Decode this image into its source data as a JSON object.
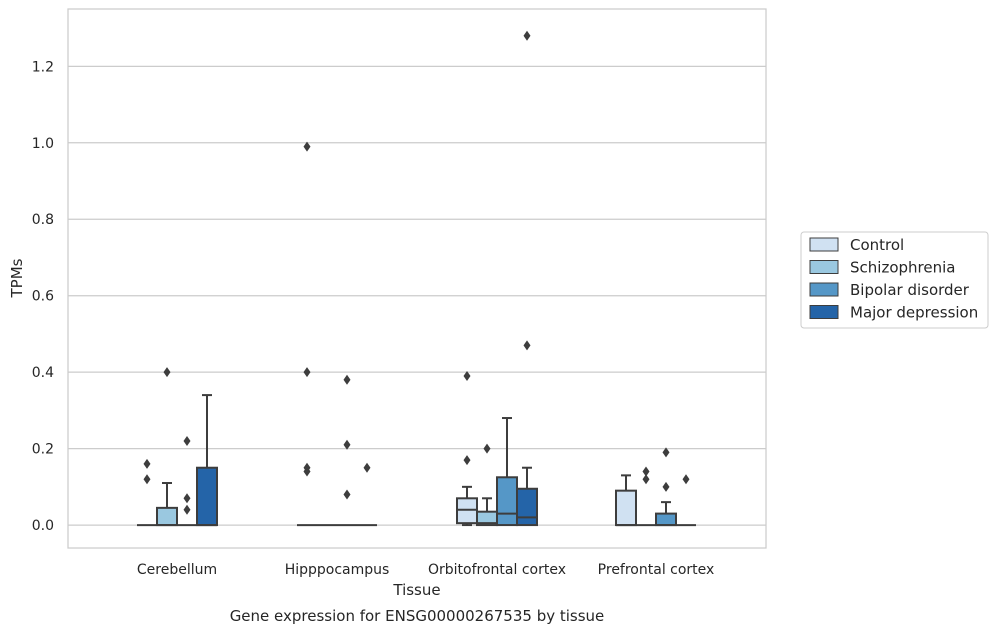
{
  "chart_data": {
    "type": "box",
    "title": "",
    "caption": "Gene expression for ENSG00000267535 by tissue",
    "xlabel": "Tissue",
    "ylabel": "TPMs",
    "ylim": [
      -0.06,
      1.35
    ],
    "yticks": [
      0.0,
      0.2,
      0.4,
      0.6,
      0.8,
      1.0,
      1.2
    ],
    "ytick_labels": [
      "0.0",
      "0.2",
      "0.4",
      "0.6",
      "0.8",
      "1.0",
      "1.2"
    ],
    "grid": "horizontal",
    "legend_position": "right",
    "categories": [
      "Cerebellum",
      "Hipppocampus",
      "Orbitofrontal cortex",
      "Prefrontal cortex"
    ],
    "series": [
      {
        "name": "Control",
        "color": "#d0e1f2",
        "boxes": [
          {
            "q1": 0,
            "median": 0,
            "q3": 0,
            "whislo": 0,
            "whishi": 0,
            "fliers": [
              0.12,
              0.16
            ]
          },
          {
            "q1": 0,
            "median": 0,
            "q3": 0,
            "whislo": 0,
            "whishi": 0,
            "fliers": [
              0.4,
              0.99,
              0.14,
              0.15
            ]
          },
          {
            "q1": 0.005,
            "median": 0.04,
            "q3": 0.07,
            "whislo": 0,
            "whishi": 0.1,
            "fliers": [
              0.17,
              0.39
            ]
          },
          {
            "q1": 0,
            "median": 0,
            "q3": 0.09,
            "whislo": 0,
            "whishi": 0.13,
            "fliers": []
          }
        ]
      },
      {
        "name": "Schizophrenia",
        "color": "#9ac8e0",
        "boxes": [
          {
            "q1": 0,
            "median": 0,
            "q3": 0.045,
            "whislo": 0,
            "whishi": 0.11,
            "fliers": [
              0.4
            ]
          },
          {
            "q1": 0,
            "median": 0,
            "q3": 0,
            "whislo": 0,
            "whishi": 0,
            "fliers": []
          },
          {
            "q1": 0,
            "median": 0.005,
            "q3": 0.035,
            "whislo": 0,
            "whishi": 0.07,
            "fliers": [
              0.2
            ]
          },
          {
            "q1": 0,
            "median": 0,
            "q3": 0,
            "whislo": 0,
            "whishi": 0,
            "fliers": [
              0.12,
              0.14
            ]
          }
        ]
      },
      {
        "name": "Bipolar disorder",
        "color": "#5597c7",
        "boxes": [
          {
            "q1": 0,
            "median": 0,
            "q3": 0,
            "whislo": 0,
            "whishi": 0,
            "fliers": [
              0.04,
              0.07,
              0.22
            ]
          },
          {
            "q1": 0,
            "median": 0,
            "q3": 0,
            "whislo": 0,
            "whishi": 0,
            "fliers": [
              0.08,
              0.21,
              0.38
            ]
          },
          {
            "q1": 0,
            "median": 0.03,
            "q3": 0.125,
            "whislo": 0,
            "whishi": 0.28,
            "fliers": []
          },
          {
            "q1": 0,
            "median": 0,
            "q3": 0.03,
            "whislo": 0,
            "whishi": 0.06,
            "fliers": [
              0.1,
              0.19
            ]
          }
        ]
      },
      {
        "name": "Major depression",
        "color": "#2464a8",
        "boxes": [
          {
            "q1": 0,
            "median": 0,
            "q3": 0.15,
            "whislo": 0,
            "whishi": 0.34,
            "fliers": []
          },
          {
            "q1": 0,
            "median": 0,
            "q3": 0,
            "whislo": 0,
            "whishi": 0,
            "fliers": [
              0.15
            ]
          },
          {
            "q1": 0,
            "median": 0.02,
            "q3": 0.095,
            "whislo": 0,
            "whishi": 0.15,
            "fliers": [
              0.47,
              1.28
            ]
          },
          {
            "q1": 0,
            "median": 0,
            "q3": 0,
            "whislo": 0,
            "whishi": 0,
            "fliers": [
              0.12
            ]
          }
        ]
      }
    ]
  }
}
